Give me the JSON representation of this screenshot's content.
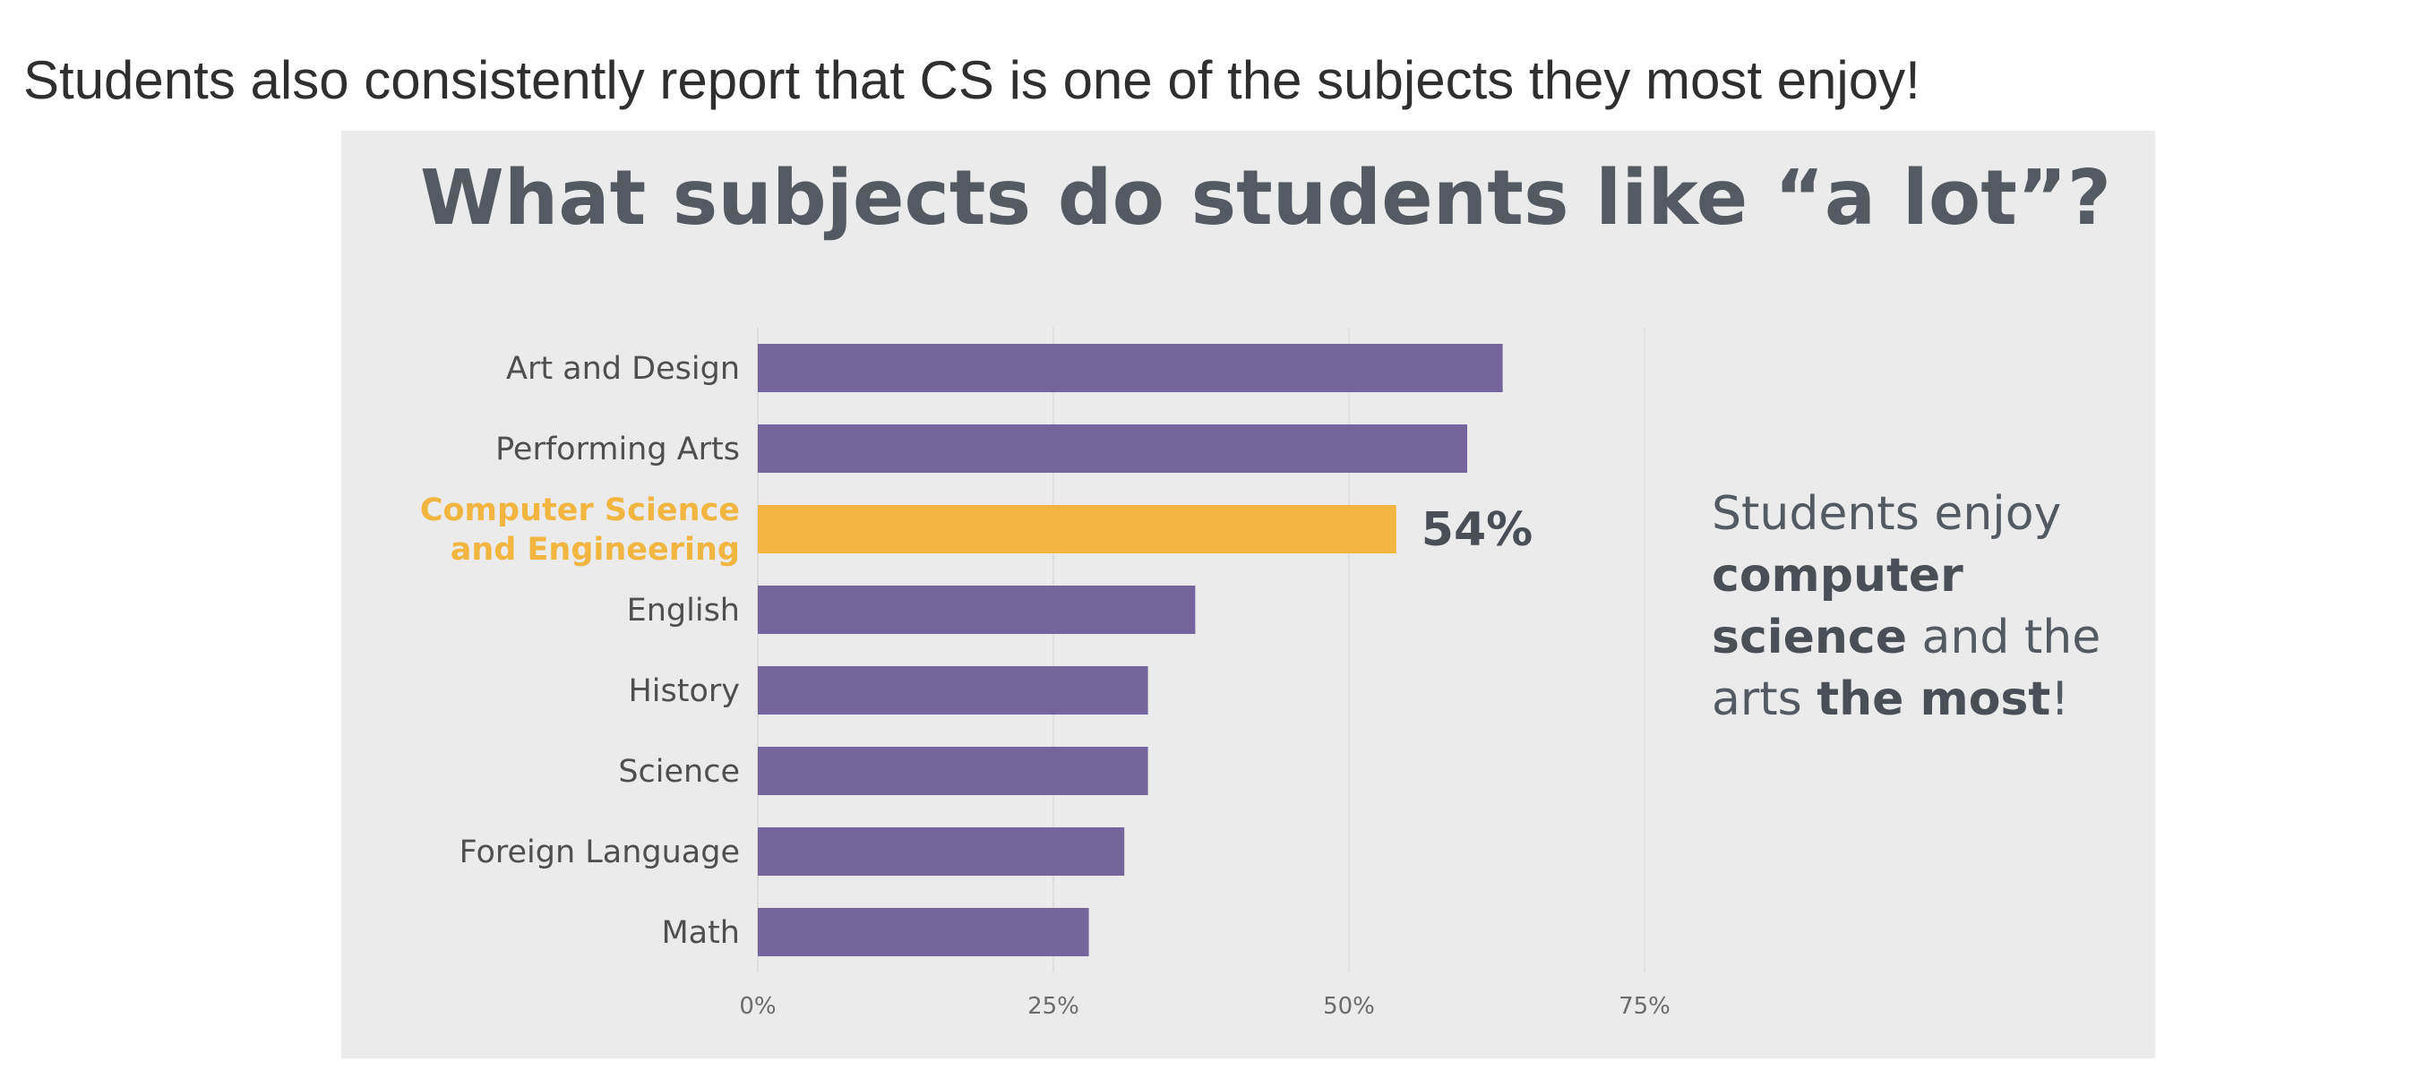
{
  "slide": {
    "heading": "Students also consistently report that CS is one of the subjects they most enjoy!"
  },
  "side_note": {
    "parts": [
      {
        "text": "Students enjoy ",
        "bold": false
      },
      {
        "text": "computer science",
        "bold": true
      },
      {
        "text": " and the arts ",
        "bold": false
      },
      {
        "text": "the most",
        "bold": true
      },
      {
        "text": "!",
        "bold": false
      }
    ]
  },
  "colors": {
    "bar": "#74669c",
    "highlight": "#f2b53f",
    "panel_background": "#ebebeb",
    "title": "#545a62"
  },
  "chart_data": {
    "type": "bar",
    "orientation": "horizontal",
    "title": "What subjects do students like “a lot”?",
    "xlabel": "",
    "ylabel": "",
    "xlim": [
      0,
      75
    ],
    "x_ticks": [
      0,
      25,
      50,
      75
    ],
    "x_tick_labels": [
      "0%",
      "25%",
      "50%",
      "75%"
    ],
    "grid": true,
    "legend": "none",
    "highlight_index": 2,
    "categories": [
      [
        "Art and Design"
      ],
      [
        "Performing Arts"
      ],
      [
        "Computer Science",
        "and Engineering"
      ],
      [
        "English"
      ],
      [
        "History"
      ],
      [
        "Science"
      ],
      [
        "Foreign Language"
      ],
      [
        "Math"
      ]
    ],
    "values": [
      63,
      60,
      54,
      37,
      33,
      33,
      31,
      28
    ],
    "data_labels": [
      "",
      "",
      "54%",
      "",
      "",
      "",
      "",
      ""
    ]
  }
}
